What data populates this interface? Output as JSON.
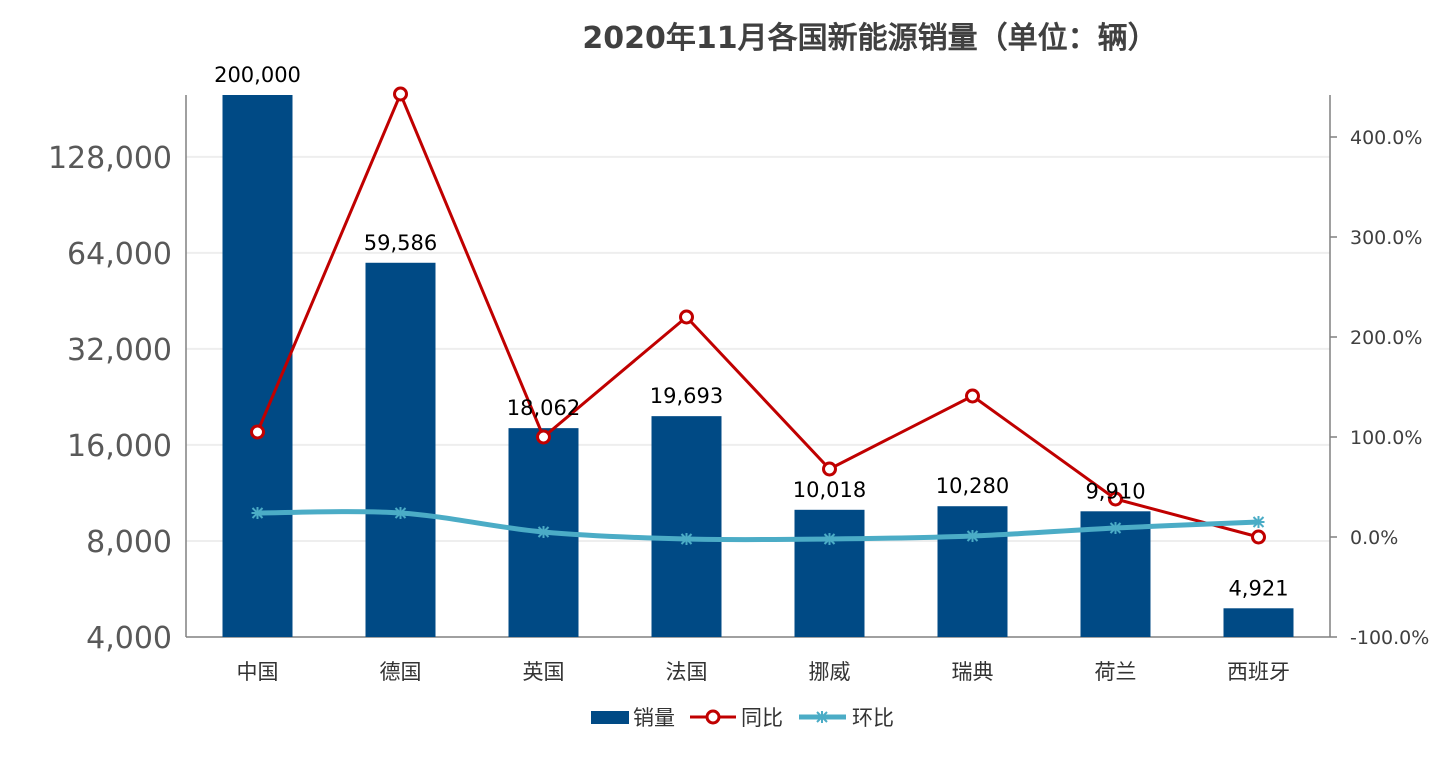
{
  "chart_data": {
    "type": "bar",
    "title": "2020年11月各国新能源销量（单位：辆）",
    "categories": [
      "中国",
      "德国",
      "英国",
      "法国",
      "挪威",
      "瑞典",
      "荷兰",
      "西班牙"
    ],
    "series": [
      {
        "name": "销量",
        "type": "bar",
        "axis": "left",
        "color": "#004a85",
        "values": [
          200000,
          59586,
          18062,
          19693,
          10018,
          10280,
          9910,
          4921
        ],
        "labels": [
          "200,000",
          "59,586",
          "18,062",
          "19,693",
          "10,018",
          "10,280",
          "9,910",
          "4,921"
        ]
      },
      {
        "name": "同比",
        "type": "line",
        "axis": "right",
        "color": "#c00000",
        "marker": "circle",
        "values": [
          105,
          443,
          100,
          220,
          68,
          141,
          38,
          0
        ]
      },
      {
        "name": "环比",
        "type": "line",
        "axis": "right",
        "color": "#4bacc6",
        "marker": "asterisk",
        "smooth": true,
        "values": [
          24,
          24,
          5,
          -2,
          -2,
          1,
          9,
          15
        ]
      }
    ],
    "left_axis": {
      "scale": "log2",
      "ylim": [
        4000,
        200000
      ],
      "ticks": [
        4000,
        8000,
        16000,
        32000,
        64000,
        128000
      ],
      "tick_labels": [
        "4,000",
        "8,000",
        "16,000",
        "32,000",
        "64,000",
        "128,000"
      ]
    },
    "right_axis": {
      "ylim": [
        -100,
        442
      ],
      "ticks": [
        -100,
        0,
        100,
        200,
        300,
        400
      ],
      "tick_labels": [
        "-100.0%",
        "0.0%",
        "100.0%",
        "200.0%",
        "300.0%",
        "400.0%"
      ]
    },
    "grid": true,
    "legend": "bottom"
  }
}
